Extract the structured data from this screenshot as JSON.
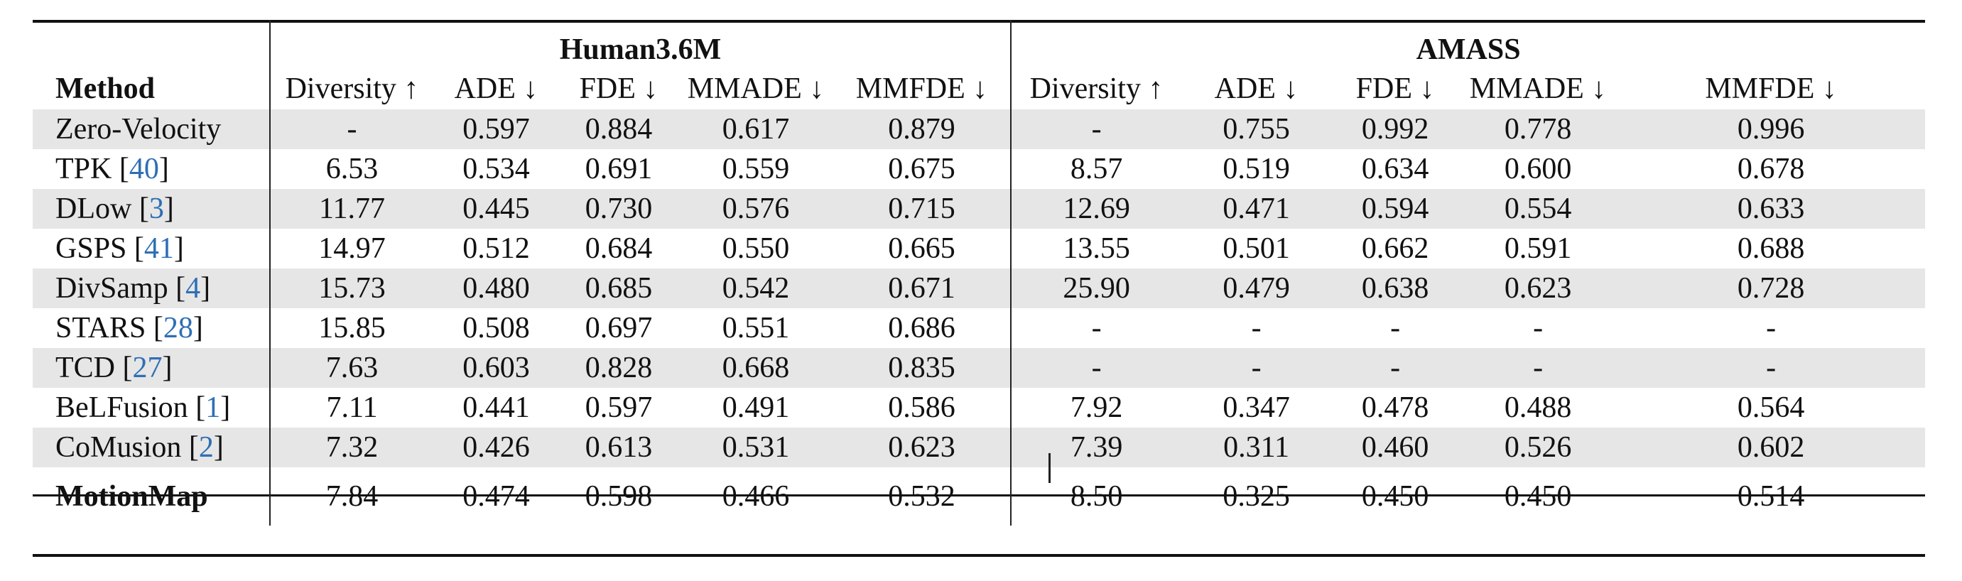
{
  "table": {
    "method_header": "Method",
    "groups": [
      "Human3.6M",
      "AMASS"
    ],
    "columns": [
      "Diversity ↑",
      "ADE ↓",
      "FDE ↓",
      "MMADE ↓",
      "MMFDE ↓"
    ],
    "rows": [
      {
        "name": "Zero-Velocity",
        "ref": "",
        "h36m": [
          "-",
          "0.597",
          "0.884",
          "0.617",
          "0.879"
        ],
        "amass": [
          "-",
          "0.755",
          "0.992",
          "0.778",
          "0.996"
        ]
      },
      {
        "name": "TPK",
        "ref": "40",
        "h36m": [
          "6.53",
          "0.534",
          "0.691",
          "0.559",
          "0.675"
        ],
        "amass": [
          "8.57",
          "0.519",
          "0.634",
          "0.600",
          "0.678"
        ]
      },
      {
        "name": "DLow",
        "ref": "3",
        "h36m": [
          "11.77",
          "0.445",
          "0.730",
          "0.576",
          "0.715"
        ],
        "amass": [
          "12.69",
          "0.471",
          "0.594",
          "0.554",
          "0.633"
        ]
      },
      {
        "name": "GSPS",
        "ref": "41",
        "h36m": [
          "14.97",
          "0.512",
          "0.684",
          "0.550",
          "0.665"
        ],
        "amass": [
          "13.55",
          "0.501",
          "0.662",
          "0.591",
          "0.688"
        ]
      },
      {
        "name": "DivSamp",
        "ref": "4",
        "h36m": [
          "15.73",
          "0.480",
          "0.685",
          "0.542",
          "0.671"
        ],
        "amass": [
          "25.90",
          "0.479",
          "0.638",
          "0.623",
          "0.728"
        ]
      },
      {
        "name": "STARS",
        "ref": "28",
        "h36m": [
          "15.85",
          "0.508",
          "0.697",
          "0.551",
          "0.686"
        ],
        "amass": [
          "-",
          "-",
          "-",
          "-",
          "-"
        ]
      },
      {
        "name": "TCD",
        "ref": "27",
        "h36m": [
          "7.63",
          "0.603",
          "0.828",
          "0.668",
          "0.835"
        ],
        "amass": [
          "-",
          "-",
          "-",
          "-",
          "-"
        ]
      },
      {
        "name": "BeLFusion",
        "ref": "1",
        "h36m": [
          "7.11",
          "0.441",
          "0.597",
          "0.491",
          "0.586"
        ],
        "amass": [
          "7.92",
          "0.347",
          "0.478",
          "0.488",
          "0.564"
        ]
      },
      {
        "name": "CoMusion",
        "ref": "2",
        "h36m": [
          "7.32",
          "0.426",
          "0.613",
          "0.531",
          "0.623"
        ],
        "amass": [
          "7.39",
          "0.311",
          "0.460",
          "0.526",
          "0.602"
        ]
      }
    ],
    "final": {
      "name": "MotionMap",
      "h36m": [
        "7.84",
        "0.474",
        "0.598",
        "0.466",
        "0.532"
      ],
      "amass": [
        "8.50",
        "0.325",
        "0.450",
        "0.450",
        "0.514"
      ]
    }
  }
}
